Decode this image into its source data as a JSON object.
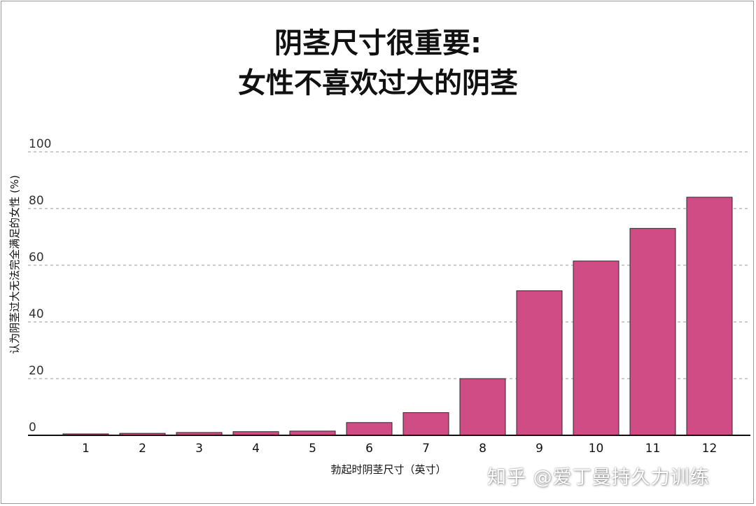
{
  "title_line1": "阴茎尺寸很重要:",
  "title_line2": "女性不喜欢过大的阴茎",
  "watermark": "知乎 @爱丁曼持久力训练",
  "bar_color": "#d04c85",
  "chart_data": {
    "type": "bar",
    "categories": [
      "1",
      "2",
      "3",
      "4",
      "5",
      "6",
      "7",
      "8",
      "9",
      "10",
      "11",
      "12"
    ],
    "values": [
      0.5,
      0.7,
      1,
      1.3,
      1.5,
      4.5,
      8,
      20,
      51,
      61.5,
      73,
      84
    ],
    "xlabel": "勃起时阴茎尺寸（英寸）",
    "ylabel": "认为阴茎过大无法完全满足的女性 (%)",
    "ylim": [
      0,
      100
    ],
    "yticks": [
      0,
      20,
      40,
      60,
      80,
      100
    ],
    "grid": true
  }
}
